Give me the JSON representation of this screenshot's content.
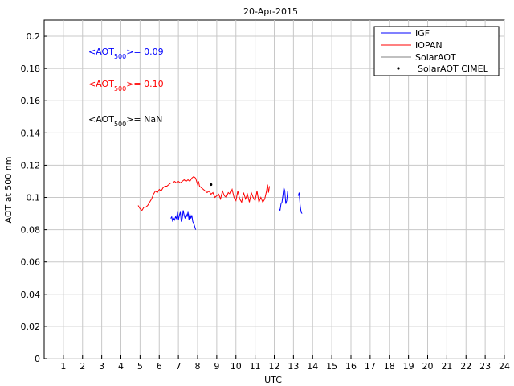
{
  "chart_data": {
    "type": "line",
    "title": "20-Apr-2015",
    "xlabel": "UTC",
    "ylabel": "AOT at 500 nm",
    "xlim": [
      0,
      24
    ],
    "ylim": [
      0,
      0.21
    ],
    "grid": true,
    "legend_placement": "top-right",
    "xticks": [
      1,
      2,
      3,
      4,
      5,
      6,
      7,
      8,
      9,
      10,
      11,
      12,
      13,
      14,
      15,
      16,
      17,
      18,
      19,
      20,
      21,
      22,
      23,
      24
    ],
    "yticks": [
      "0",
      "0.02",
      "0.04",
      "0.06",
      "0.08",
      "0.1",
      "0.12",
      "0.14",
      "0.16",
      "0.18",
      "0.2"
    ],
    "ytick_values": [
      0,
      0.02,
      0.04,
      0.06,
      0.08,
      0.1,
      0.12,
      0.14,
      0.16,
      0.18,
      0.2
    ],
    "legend": [
      {
        "name": "IGF",
        "color": "#0000ff",
        "marker": "line"
      },
      {
        "name": "IOPAN",
        "color": "#ff0000",
        "marker": "line"
      },
      {
        "name": "SolarAOT",
        "color": "#808080",
        "marker": "line"
      },
      {
        "name": "SolarAOT CIMEL",
        "color": "#000000",
        "marker": "dot"
      }
    ],
    "annotations": [
      {
        "prefix": "<AOT",
        "sub": "500",
        "suffix": ">= 0.09",
        "color": "#0000ff"
      },
      {
        "prefix": "<AOT",
        "sub": "500",
        "suffix": ">= 0.10",
        "color": "#ff0000"
      },
      {
        "prefix": "<AOT",
        "sub": "500",
        "suffix": ">=  NaN",
        "color": "#000000"
      }
    ],
    "series": [
      {
        "name": "IGF",
        "color": "#0000ff",
        "segments": [
          [
            [
              6.6,
              0.087
            ],
            [
              6.65,
              0.088
            ],
            [
              6.7,
              0.085
            ],
            [
              6.75,
              0.087
            ],
            [
              6.8,
              0.086
            ],
            [
              6.85,
              0.088
            ],
            [
              6.9,
              0.087
            ],
            [
              6.95,
              0.091
            ],
            [
              7.0,
              0.086
            ],
            [
              7.05,
              0.089
            ],
            [
              7.1,
              0.091
            ],
            [
              7.15,
              0.085
            ],
            [
              7.2,
              0.087
            ],
            [
              7.25,
              0.092
            ],
            [
              7.3,
              0.089
            ],
            [
              7.35,
              0.087
            ],
            [
              7.4,
              0.09
            ],
            [
              7.45,
              0.088
            ],
            [
              7.5,
              0.091
            ],
            [
              7.55,
              0.086
            ],
            [
              7.6,
              0.09
            ],
            [
              7.65,
              0.087
            ],
            [
              7.7,
              0.089
            ],
            [
              7.75,
              0.085
            ],
            [
              7.8,
              0.084
            ],
            [
              7.85,
              0.082
            ],
            [
              7.9,
              0.08
            ]
          ],
          [
            [
              12.25,
              0.093
            ],
            [
              12.3,
              0.092
            ],
            [
              12.35,
              0.096
            ],
            [
              12.4,
              0.097
            ],
            [
              12.45,
              0.101
            ],
            [
              12.5,
              0.106
            ],
            [
              12.55,
              0.104
            ],
            [
              12.6,
              0.096
            ],
            [
              12.65,
              0.098
            ],
            [
              12.7,
              0.104
            ]
          ],
          [
            [
              13.25,
              0.101
            ],
            [
              13.3,
              0.103
            ],
            [
              13.35,
              0.095
            ],
            [
              13.4,
              0.091
            ],
            [
              13.45,
              0.09
            ]
          ]
        ]
      },
      {
        "name": "IOPAN",
        "color": "#ff0000",
        "segments": [
          [
            [
              4.9,
              0.095
            ],
            [
              5.0,
              0.093
            ],
            [
              5.1,
              0.092
            ],
            [
              5.2,
              0.094
            ],
            [
              5.3,
              0.094
            ],
            [
              5.4,
              0.095
            ],
            [
              5.5,
              0.097
            ],
            [
              5.6,
              0.099
            ],
            [
              5.7,
              0.102
            ],
            [
              5.8,
              0.104
            ],
            [
              5.9,
              0.103
            ],
            [
              6.0,
              0.105
            ],
            [
              6.1,
              0.104
            ],
            [
              6.2,
              0.106
            ],
            [
              6.3,
              0.107
            ],
            [
              6.4,
              0.107
            ],
            [
              6.5,
              0.108
            ],
            [
              6.6,
              0.109
            ],
            [
              6.7,
              0.109
            ],
            [
              6.8,
              0.11
            ],
            [
              6.9,
              0.109
            ],
            [
              7.0,
              0.11
            ],
            [
              7.1,
              0.109
            ],
            [
              7.2,
              0.11
            ],
            [
              7.3,
              0.111
            ],
            [
              7.4,
              0.11
            ],
            [
              7.5,
              0.111
            ],
            [
              7.6,
              0.11
            ],
            [
              7.7,
              0.112
            ],
            [
              7.8,
              0.113
            ],
            [
              7.9,
              0.112
            ],
            [
              8.0,
              0.108
            ],
            [
              8.05,
              0.11
            ],
            [
              8.1,
              0.107
            ],
            [
              8.2,
              0.106
            ],
            [
              8.3,
              0.105
            ],
            [
              8.4,
              0.104
            ],
            [
              8.5,
              0.103
            ],
            [
              8.6,
              0.104
            ],
            [
              8.7,
              0.102
            ],
            [
              8.8,
              0.103
            ],
            [
              8.9,
              0.1
            ],
            [
              9.0,
              0.101
            ],
            [
              9.1,
              0.102
            ],
            [
              9.2,
              0.099
            ],
            [
              9.3,
              0.104
            ],
            [
              9.4,
              0.101
            ],
            [
              9.5,
              0.1
            ],
            [
              9.6,
              0.103
            ],
            [
              9.7,
              0.102
            ],
            [
              9.8,
              0.105
            ],
            [
              9.9,
              0.1
            ],
            [
              10.0,
              0.098
            ],
            [
              10.1,
              0.104
            ],
            [
              10.2,
              0.099
            ],
            [
              10.3,
              0.097
            ],
            [
              10.4,
              0.103
            ],
            [
              10.5,
              0.099
            ],
            [
              10.6,
              0.102
            ],
            [
              10.7,
              0.097
            ],
            [
              10.8,
              0.103
            ],
            [
              10.9,
              0.1
            ],
            [
              11.0,
              0.098
            ],
            [
              11.1,
              0.104
            ],
            [
              11.2,
              0.097
            ],
            [
              11.3,
              0.1
            ],
            [
              11.4,
              0.097
            ],
            [
              11.5,
              0.099
            ],
            [
              11.6,
              0.104
            ],
            [
              11.65,
              0.108
            ],
            [
              11.7,
              0.103
            ],
            [
              11.75,
              0.107
            ]
          ]
        ]
      }
    ],
    "cimel_points": [
      [
        8.7,
        0.108
      ]
    ]
  }
}
